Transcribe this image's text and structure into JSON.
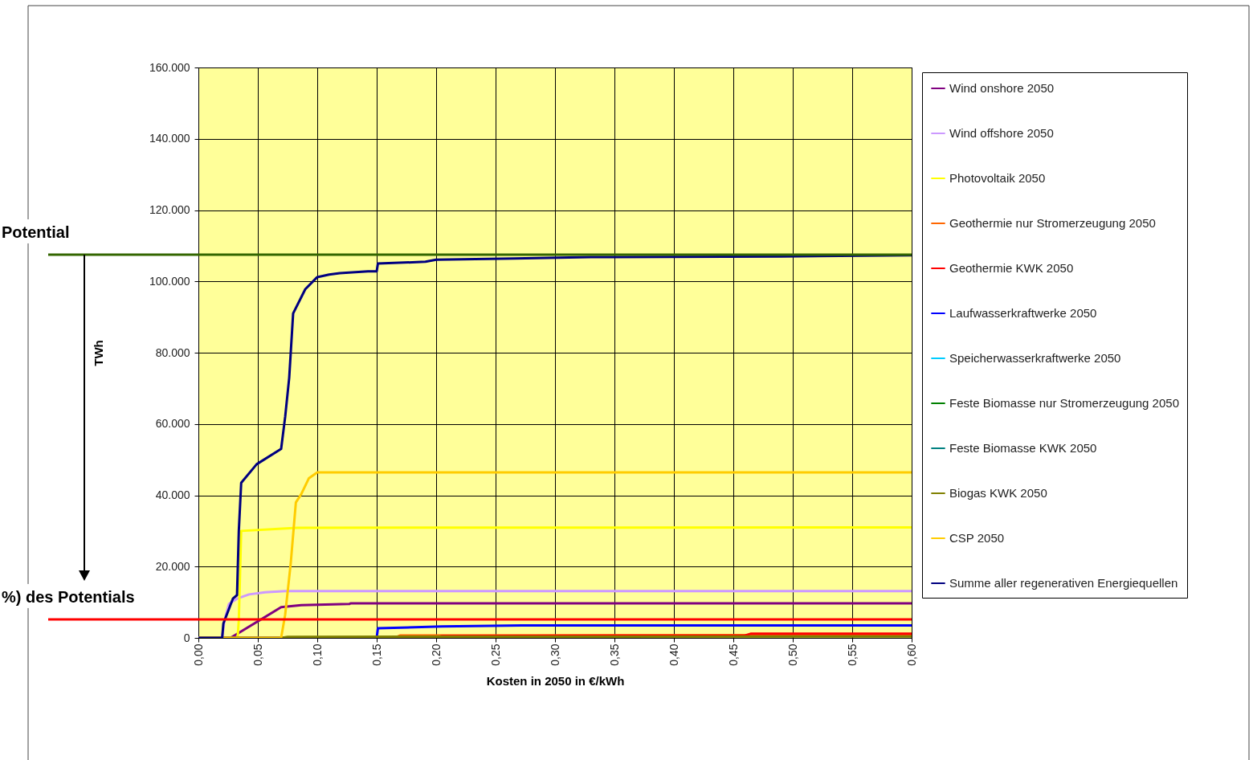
{
  "chart_data": {
    "type": "line",
    "xlabel": "Kosten in 2050 in €/kWh",
    "ylabel": "TWh",
    "xlim": [
      0,
      0.6
    ],
    "xticks": [
      {
        "value": 0,
        "label": "0,00"
      },
      {
        "value": 0.05,
        "label": "0,05"
      },
      {
        "value": 0.1,
        "label": "0,10"
      },
      {
        "value": 0.15,
        "label": "0,15"
      },
      {
        "value": 0.2,
        "label": "0,20"
      },
      {
        "value": 0.25,
        "label": "0,25"
      },
      {
        "value": 0.3,
        "label": "0,30"
      },
      {
        "value": 0.35,
        "label": "0,35"
      },
      {
        "value": 0.4,
        "label": "0,40"
      },
      {
        "value": 0.45,
        "label": "0,45"
      },
      {
        "value": 0.5,
        "label": "0,50"
      },
      {
        "value": 0.55,
        "label": "0,55"
      },
      {
        "value": 0.6,
        "label": "0,60"
      }
    ],
    "ylim": [
      0,
      160000
    ],
    "yticks": [
      0,
      {
        "value": 20000,
        "label": "20.000"
      },
      {
        "value": 40000,
        "label": "40.000"
      },
      {
        "value": 60000,
        "label": "60.000"
      },
      {
        "value": 80000,
        "label": "80.000"
      },
      {
        "value": 100000,
        "label": "100.000"
      },
      {
        "value": 120000,
        "label": "120.000"
      },
      {
        "value": 140000,
        "label": "140.000"
      },
      {
        "value": 160000,
        "label": "160.000"
      }
    ],
    "grid": true,
    "legend": "right",
    "series": [
      {
        "name": "Wind onshore 2050",
        "color": "#800080",
        "x": [
          0,
          0.027,
          0.0696,
          0.0865,
          0.127,
          0.128,
          0.6
        ],
        "values": [
          0,
          0,
          8600,
          9200,
          9500,
          9700,
          9700
        ]
      },
      {
        "name": "Wind offshore 2050",
        "color": "#cc99ff",
        "x": [
          0,
          0.02,
          0.022,
          0.0257,
          0.0325,
          0.0426,
          0.056,
          0.073,
          0.6
        ],
        "values": [
          0,
          0,
          5000,
          9500,
          11000,
          12200,
          12800,
          13100,
          13100
        ]
      },
      {
        "name": "Photovoltaik 2050",
        "color": "#ffff00",
        "x": [
          0,
          0.033,
          0.034,
          0.036,
          0.0676,
          0.083,
          0.6
        ],
        "values": [
          0,
          0,
          5000,
          30000,
          30600,
          30900,
          31000
        ]
      },
      {
        "name": "Geothermie nur Stromerzeugung 2050",
        "color": "#ff6600",
        "x": [
          0,
          0.165,
          0.17,
          0.6
        ],
        "values": [
          0,
          0,
          700,
          800
        ]
      },
      {
        "name": "Geothermie KWK 2050",
        "color": "#ff0000",
        "x": [
          0,
          0.2,
          0.205,
          0.46,
          0.465,
          0.6
        ],
        "values": [
          0,
          0,
          500,
          700,
          1200,
          1200
        ]
      },
      {
        "name": "Laufwasserkraftwerke 2050",
        "color": "#0000ff",
        "x": [
          0,
          0.15,
          0.151,
          0.205,
          0.272,
          0.6
        ],
        "values": [
          0,
          0,
          2700,
          3200,
          3500,
          3500
        ]
      },
      {
        "name": "Speicherwasserkraftwerke 2050",
        "color": "#00ccff"
      },
      {
        "name": "Feste Biomasse nur Stromerzeugung 2050",
        "color": "#008000"
      },
      {
        "name": "Feste Biomasse KWK 2050",
        "color": "#008080"
      },
      {
        "name": "Biogas KWK 2050",
        "color": "#808000",
        "x": [
          0,
          0.07,
          0.075,
          0.6
        ],
        "values": [
          0,
          0,
          300,
          400
        ]
      },
      {
        "name": "CSP 2050",
        "color": "#ffcc00",
        "x": [
          0,
          0.0696,
          0.073,
          0.0777,
          0.082,
          0.0865,
          0.093,
          0.1,
          0.6
        ],
        "values": [
          0,
          0,
          6500,
          21000,
          38000,
          40300,
          44800,
          46400,
          46400
        ]
      },
      {
        "name": "Summe aller regenerativen Energiequellen",
        "color": "#000080",
        "x": [
          0,
          0.02,
          0.021,
          0.029,
          0.0325,
          0.034,
          0.036,
          0.049,
          0.0696,
          0.073,
          0.0764,
          0.0797,
          0.0899,
          0.1,
          0.11,
          0.119,
          0.1426,
          0.15,
          0.151,
          0.191,
          0.2,
          0.266,
          0.33,
          0.49,
          0.6
        ],
        "values": [
          0,
          0,
          4000,
          11000,
          12000,
          30000,
          43500,
          48700,
          53000,
          62000,
          73000,
          91000,
          97800,
          101200,
          101900,
          102300,
          102800,
          102800,
          105000,
          105500,
          106100,
          106400,
          106800,
          107000,
          107300
        ]
      }
    ],
    "ref_lines": [
      {
        "axis": "y",
        "value": 107500,
        "label": "Potential",
        "color": "#336600"
      },
      {
        "axis": "y",
        "value": 5200,
        "label": "%) des Potentials",
        "color": "#ff0000"
      }
    ]
  }
}
